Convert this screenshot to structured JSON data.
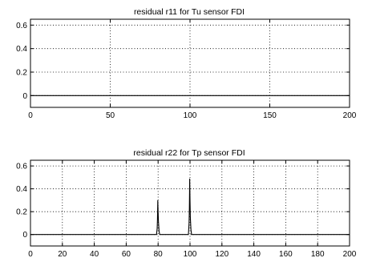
{
  "chart_data": [
    {
      "type": "line",
      "title": "residual r11 for Tu sensor FDI",
      "xlabel": "",
      "ylabel": "",
      "xlim": [
        0,
        200
      ],
      "ylim": [
        -0.1,
        0.65
      ],
      "x_ticks": [
        0,
        50,
        100,
        150,
        200
      ],
      "x_tick_labels": [
        "0",
        "50",
        "100",
        "150",
        "200"
      ],
      "y_ticks": [
        0,
        0.2,
        0.4,
        0.6
      ],
      "y_tick_labels": [
        "0",
        "0.2",
        "0.4",
        "0.6"
      ],
      "grid": true,
      "series": [
        {
          "x": [
            0,
            200
          ],
          "values": [
            0,
            0
          ]
        }
      ]
    },
    {
      "type": "line",
      "title": "residual r22 for  Tp sensor FDI",
      "xlabel": "",
      "ylabel": "",
      "xlim": [
        0,
        200
      ],
      "ylim": [
        -0.1,
        0.65
      ],
      "x_ticks": [
        0,
        20,
        40,
        60,
        80,
        100,
        120,
        140,
        160,
        180,
        200
      ],
      "x_tick_labels": [
        "0",
        "20",
        "40",
        "60",
        "80",
        "100",
        "120",
        "140",
        "160",
        "180",
        "200"
      ],
      "y_ticks": [
        0,
        0.2,
        0.4,
        0.6
      ],
      "y_tick_labels": [
        "0",
        "0.2",
        "0.4",
        "0.6"
      ],
      "grid": true,
      "series": [
        {
          "x": [
            0,
            79,
            79.4,
            79.6,
            79.8,
            80,
            80.2,
            80.6,
            81,
            99,
            99.4,
            99.6,
            99.8,
            100,
            100.2,
            100.6,
            101,
            200
          ],
          "values": [
            0,
            0,
            0.05,
            0.13,
            0.3,
            0.2,
            0.12,
            0.03,
            0,
            0,
            0.1,
            0.22,
            0.49,
            0.3,
            0.15,
            0.04,
            0,
            0
          ]
        }
      ]
    }
  ]
}
